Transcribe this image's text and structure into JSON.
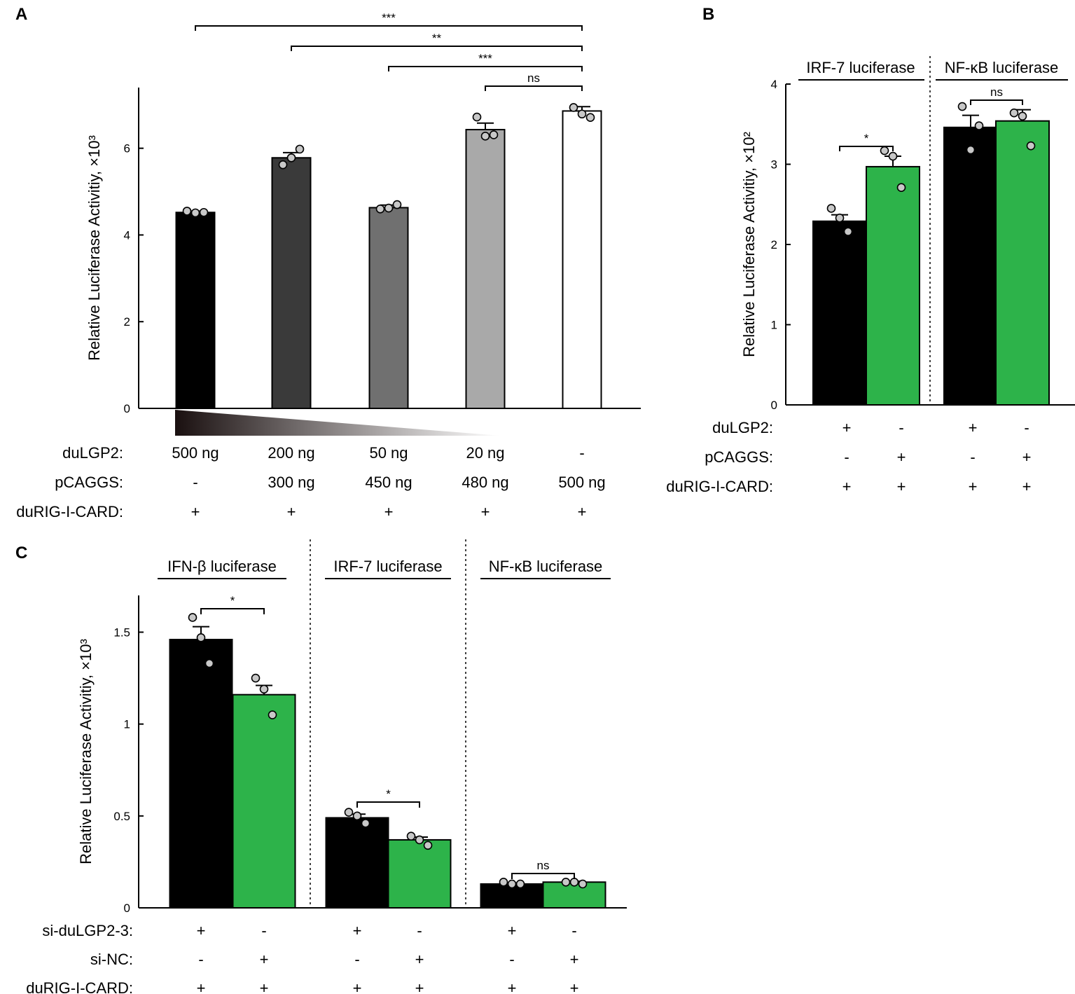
{
  "colors": {
    "black": "#000000",
    "green": "#2db34a",
    "point_fill": "#c8c8c8",
    "grad_start": "#1a1010",
    "grad_end": "#ffffff"
  },
  "chart_data": [
    {
      "panel": "A",
      "type": "bar",
      "title": "",
      "ylabel": "Relative Luciferase Activitiy, ×10³",
      "ylim": [
        0,
        7.4
      ],
      "yticks": [
        0,
        2,
        4,
        6
      ],
      "series": [
        {
          "name": "activity",
          "values": [
            4.52,
            5.78,
            4.63,
            6.43,
            6.86
          ],
          "errors": [
            0.03,
            0.12,
            0.06,
            0.15,
            0.1
          ],
          "fills": [
            "#000000",
            "#3a3a3a",
            "#707070",
            "#a9a9a9",
            "#ffffff"
          ],
          "points": [
            [
              4.55,
              4.51,
              4.52
            ],
            [
              5.62,
              5.78,
              5.98
            ],
            [
              4.6,
              4.62,
              4.7
            ],
            [
              6.72,
              6.28,
              6.31
            ],
            [
              6.94,
              6.79,
              6.71
            ]
          ]
        }
      ],
      "conditions": [
        {
          "label": "duLGP2:",
          "values": [
            "500 ng",
            "200 ng",
            "50 ng",
            "20 ng",
            "-"
          ]
        },
        {
          "label": "pCAGGS:",
          "values": [
            "-",
            "300 ng",
            "450 ng",
            "480 ng",
            "500 ng"
          ]
        },
        {
          "label": "duRIG-I-CARD:",
          "values": [
            "+",
            "+",
            "+",
            "+",
            "+"
          ]
        }
      ],
      "comparisons": [
        {
          "from": 0,
          "to": 4,
          "label": "***"
        },
        {
          "from": 1,
          "to": 4,
          "label": "**"
        },
        {
          "from": 2,
          "to": 4,
          "label": "***"
        },
        {
          "from": 3,
          "to": 4,
          "label": "ns"
        }
      ]
    },
    {
      "panel": "B",
      "type": "bar",
      "title": "",
      "ylabel": "Relative Luciferase Activitiy, ×10²",
      "ylim": [
        0,
        4
      ],
      "yticks": [
        0,
        1,
        2,
        3,
        4
      ],
      "groups": [
        "IRF-7 luciferase",
        "NF-κB luciferase"
      ],
      "series": [
        {
          "name": "duLGP2",
          "color": "black",
          "values": [
            2.29,
            3.46
          ],
          "errors": [
            0.08,
            0.15
          ],
          "points": [
            [
              2.45,
              2.33,
              2.16
            ],
            [
              3.72,
              3.18,
              3.48
            ]
          ]
        },
        {
          "name": "pCAGGS",
          "color": "green",
          "values": [
            2.97,
            3.54
          ],
          "errors": [
            0.13,
            0.14
          ],
          "points": [
            [
              3.17,
              3.1,
              2.71
            ],
            [
              3.64,
              3.6,
              3.23
            ]
          ]
        }
      ],
      "conditions": [
        {
          "label": "duLGP2:",
          "values": [
            "+",
            "-",
            "+",
            "-"
          ]
        },
        {
          "label": "pCAGGS:",
          "values": [
            "-",
            "+",
            "-",
            "+"
          ]
        },
        {
          "label": "duRIG-I-CARD:",
          "values": [
            "+",
            "+",
            "+",
            "+"
          ]
        }
      ],
      "comparisons": [
        {
          "group": 0,
          "label": "*"
        },
        {
          "group": 1,
          "label": "ns"
        }
      ]
    },
    {
      "panel": "C",
      "type": "bar",
      "title": "",
      "ylabel": "Relative Luciferase Activitiy, ×10³",
      "ylim": [
        0,
        1.7
      ],
      "yticks": [
        0,
        0.5,
        1,
        1.5
      ],
      "ytick_labels": [
        "0",
        "0.5",
        "1",
        "1.5"
      ],
      "groups": [
        "IFN-β luciferase",
        "IRF-7 luciferase",
        "NF-κB luciferase"
      ],
      "series": [
        {
          "name": "si-duLGP2-3",
          "color": "black",
          "values": [
            1.46,
            0.49,
            0.13
          ],
          "errors": [
            0.07,
            0.02,
            0.005
          ],
          "points": [
            [
              1.58,
              1.47,
              1.33
            ],
            [
              0.52,
              0.5,
              0.46
            ],
            [
              0.14,
              0.13,
              0.13
            ]
          ]
        },
        {
          "name": "si-NC",
          "color": "green",
          "values": [
            1.16,
            0.37,
            0.14
          ],
          "errors": [
            0.05,
            0.015,
            0.005
          ],
          "points": [
            [
              1.25,
              1.19,
              1.05
            ],
            [
              0.39,
              0.37,
              0.34
            ],
            [
              0.14,
              0.14,
              0.13
            ]
          ]
        }
      ],
      "conditions": [
        {
          "label": "si-duLGP2-3:",
          "values": [
            "+",
            "-",
            "+",
            "-",
            "+",
            "-"
          ]
        },
        {
          "label": "si-NC:",
          "values": [
            "-",
            "+",
            "-",
            "+",
            "-",
            "+"
          ]
        },
        {
          "label": "duRIG-I-CARD:",
          "values": [
            "+",
            "+",
            "+",
            "+",
            "+",
            "+"
          ]
        }
      ],
      "comparisons": [
        {
          "group": 0,
          "label": "*"
        },
        {
          "group": 1,
          "label": "*"
        },
        {
          "group": 2,
          "label": "ns"
        }
      ]
    }
  ],
  "panel_labels": [
    "A",
    "B",
    "C"
  ]
}
